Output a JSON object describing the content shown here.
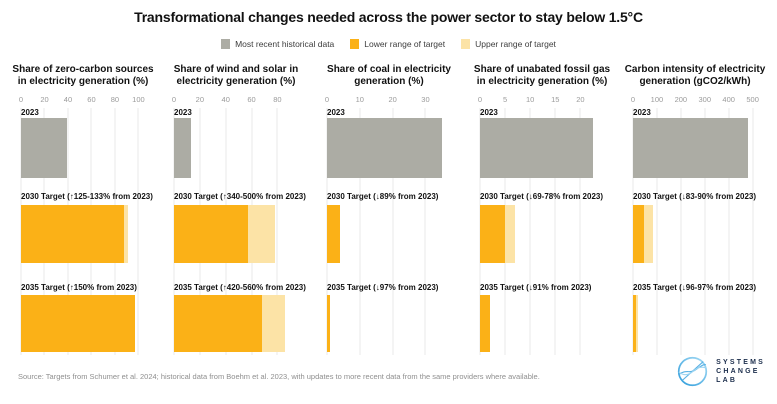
{
  "title": "Transformational changes needed across the power sector to stay below 1.5°C",
  "legend": [
    {
      "label": "Most recent historical data",
      "color_key": "historical"
    },
    {
      "label": "Lower range of target",
      "color_key": "lower"
    },
    {
      "label": "Upper range of target",
      "color_key": "upper"
    }
  ],
  "colors": {
    "historical": "#ACACA4",
    "lower": "#FBB117",
    "upper": "#FCE3A6",
    "gridline": "#E8E8E8",
    "tick_text": "#9B9B9B",
    "ink": "#111111",
    "logo_navy": "#1C2E4C",
    "logo_blue": "#58B1E4",
    "logo_light_blue": "#9FD6F2"
  },
  "source": "Source: Targets from Schumer et al. 2024; historical data from Boehm et al. 2023, with updates to more recent data from the same providers where available.",
  "logo": {
    "lines": [
      "SYSTEMS",
      "CHANGE",
      "LAB"
    ]
  },
  "chart_data": {
    "type": "bar",
    "orientation": "horizontal",
    "grid": true,
    "legend_position": "top",
    "panels": [
      {
        "title": "Share of zero-carbon sources in electricity generation (%)",
        "title_lines": [
          "Share of zero-carbon sources",
          "in electricity generation (%)"
        ],
        "unit": "%",
        "ticks": [
          0,
          20,
          40,
          60,
          80,
          100
        ],
        "axis_max": 109,
        "rows": [
          {
            "kind": "historical",
            "label": "2023",
            "value": 39
          },
          {
            "kind": "target",
            "label": "2030 Target (↑125-133% from 2023)",
            "lower": 88,
            "upper": 91
          },
          {
            "kind": "target",
            "label": "2035 Target (↑150% from 2023)",
            "lower": 97.5,
            "upper": 97.5
          }
        ]
      },
      {
        "title": "Share of wind and solar in electricity generation (%)",
        "title_lines": [
          "Share of wind and solar in",
          "electricity generation (%)"
        ],
        "unit": "%",
        "ticks": [
          0,
          20,
          40,
          60,
          80
        ],
        "axis_max": 99,
        "rows": [
          {
            "kind": "historical",
            "label": "2023",
            "value": 13
          },
          {
            "kind": "target",
            "label": "2030 Target (↑340-500% from 2023)",
            "lower": 57,
            "upper": 78
          },
          {
            "kind": "target",
            "label": "2035 Target (↑420-560% from 2023)",
            "lower": 68,
            "upper": 86
          }
        ]
      },
      {
        "title": "Share of coal in electricity generation (%)",
        "title_lines": [
          "Share of coal in electricity",
          "generation (%)"
        ],
        "unit": "%",
        "ticks": [
          0,
          10,
          20,
          30
        ],
        "axis_max": 39,
        "rows": [
          {
            "kind": "historical",
            "label": "2023",
            "value": 35
          },
          {
            "kind": "target",
            "label": "2030 Target (↓89% from 2023)",
            "lower": 3.9,
            "upper": 3.9
          },
          {
            "kind": "target",
            "label": "2035 Target (↓97% from 2023)",
            "lower": 1,
            "upper": 1
          }
        ]
      },
      {
        "title": "Share of unabated fossil gas in electricity generation (%)",
        "title_lines": [
          "Share of unabated fossil gas",
          "in electricity generation (%)"
        ],
        "unit": "%",
        "ticks": [
          0,
          5,
          10,
          15,
          20
        ],
        "axis_max": 25.5,
        "rows": [
          {
            "kind": "historical",
            "label": "2023",
            "value": 22.5
          },
          {
            "kind": "target",
            "label": "2030 Target (↓69-78% from 2023)",
            "lower": 5,
            "upper": 7
          },
          {
            "kind": "target",
            "label": "2035 Target (↓91% from 2023)",
            "lower": 2,
            "upper": 2
          }
        ]
      },
      {
        "title": "Carbon intensity of electricity generation (gCO2/kWh)",
        "title_lines": [
          "Carbon intensity of electricity",
          "generation (gCO2/kWh)"
        ],
        "unit": "gCO2/kWh",
        "ticks": [
          0,
          100,
          200,
          300,
          400,
          500
        ],
        "axis_max": 535,
        "rows": [
          {
            "kind": "historical",
            "label": "2023",
            "value": 480
          },
          {
            "kind": "target",
            "label": "2030 Target (↓83-90% from 2023)",
            "lower": 48,
            "upper": 82
          },
          {
            "kind": "target",
            "label": "2035 Target (↓96-97% from 2023)",
            "lower": 14,
            "upper": 19
          }
        ]
      }
    ]
  }
}
